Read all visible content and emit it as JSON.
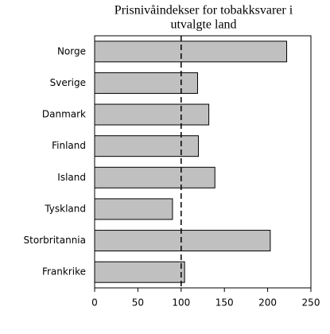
{
  "chart_data": {
    "type": "barh",
    "title": [
      "Prisnivåindekser for tobakksvarer i",
      "utvalgte land"
    ],
    "categories": [
      "Norge",
      "Sverige",
      "Danmark",
      "Finland",
      "Island",
      "Tyskland",
      "Storbritannia",
      "Frankrike"
    ],
    "values": [
      222,
      119,
      132,
      120,
      139,
      90,
      203,
      104
    ],
    "color": "#c0c0c0",
    "xlim": [
      0,
      250
    ],
    "xticks": [
      0,
      50,
      100,
      150,
      200,
      250
    ],
    "reference_line": 100,
    "grid": false
  }
}
